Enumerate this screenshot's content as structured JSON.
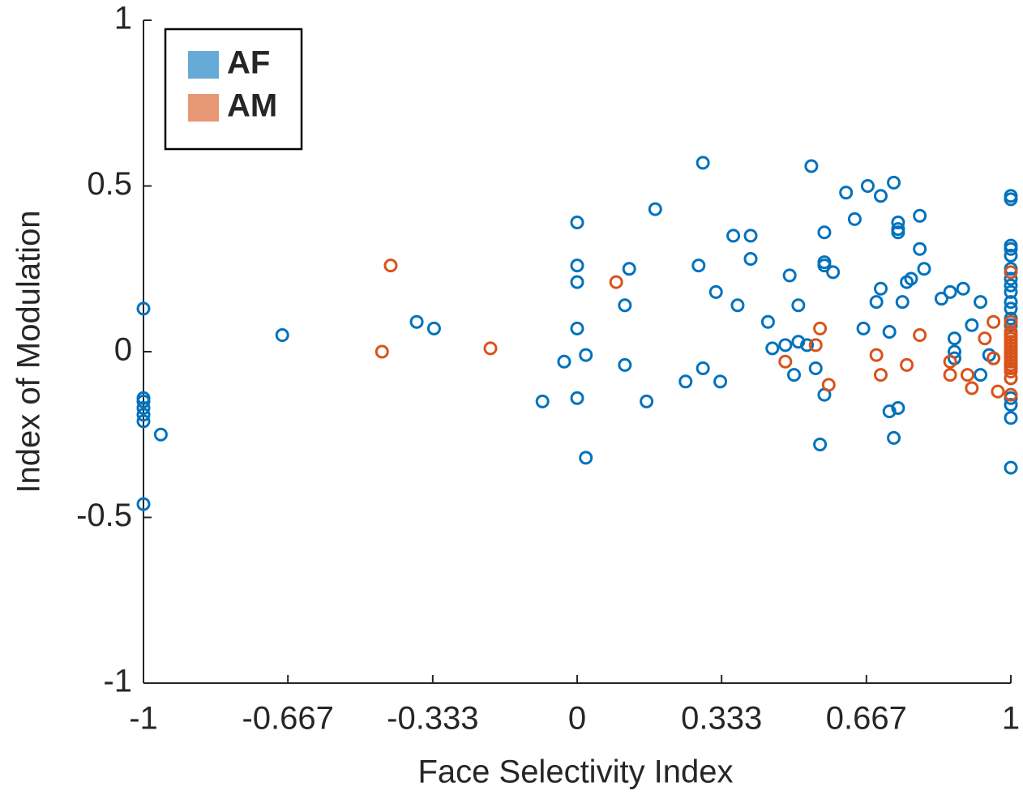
{
  "chart_data": {
    "type": "scatter",
    "xlabel": "Face Selectivity Index",
    "ylabel": "Index of Modulation",
    "xlim": [
      -1,
      1
    ],
    "ylim": [
      -1,
      1
    ],
    "xticks": [
      -1,
      -0.667,
      -0.333,
      0,
      0.333,
      0.667,
      1
    ],
    "yticks": [
      -1,
      -0.5,
      0,
      0.5,
      1
    ],
    "legend": "upper left",
    "series": [
      {
        "name": "AF",
        "color": "#0072BD",
        "x": [
          -1,
          -1,
          -1,
          -1,
          -1,
          -1,
          -0.96,
          -1,
          -0.68,
          -0.37,
          -0.33,
          -0.08,
          -0.03,
          0,
          0,
          0,
          0,
          0.02,
          0,
          0.02,
          0.12,
          0.11,
          0.11,
          0.18,
          0.16,
          0.25,
          0.29,
          0.28,
          0.29,
          0.33,
          0.32,
          0.36,
          0.4,
          0.4,
          0.37,
          0.44,
          0.45,
          0.48,
          0.49,
          0.51,
          0.51,
          0.5,
          0.54,
          0.53,
          0.55,
          0.56,
          0.57,
          0.57,
          0.57,
          0.57,
          0.59,
          0.62,
          0.64,
          0.66,
          0.67,
          0.7,
          0.69,
          0.7,
          0.72,
          0.73,
          0.74,
          0.74,
          0.74,
          0.75,
          0.76,
          0.77,
          0.79,
          0.79,
          0.8,
          0.74,
          0.72,
          0.73,
          0.84,
          0.86,
          0.89,
          0.87,
          0.87,
          0.87,
          0.91,
          0.93,
          0.93,
          0.95,
          0.96,
          1,
          1,
          1,
          1,
          1,
          1,
          1,
          1,
          1,
          1,
          1,
          1,
          1,
          1,
          1,
          1,
          1,
          1,
          1,
          1
        ],
        "values": [
          0.13,
          -0.14,
          -0.15,
          -0.17,
          -0.19,
          -0.21,
          -0.25,
          -0.46,
          0.05,
          0.09,
          0.07,
          -0.15,
          -0.03,
          0.39,
          0.26,
          0.21,
          0.07,
          -0.01,
          -0.14,
          -0.32,
          0.25,
          0.14,
          -0.04,
          0.43,
          -0.15,
          -0.09,
          0.57,
          0.26,
          -0.05,
          -0.09,
          0.18,
          0.35,
          0.35,
          0.28,
          0.14,
          0.09,
          0.01,
          0.02,
          0.23,
          0.14,
          0.03,
          -0.07,
          0.56,
          0.02,
          -0.05,
          -0.28,
          -0.13,
          0.36,
          0.27,
          0.26,
          0.24,
          0.48,
          0.4,
          0.07,
          0.5,
          0.47,
          0.15,
          0.19,
          0.06,
          0.51,
          0.39,
          0.37,
          0.36,
          0.15,
          0.21,
          0.22,
          0.41,
          0.31,
          0.25,
          -0.17,
          -0.18,
          -0.26,
          0.16,
          0.18,
          0.19,
          0.04,
          0,
          -0.02,
          0.08,
          0.15,
          -0.07,
          -0.01,
          -0.02,
          0.47,
          0.46,
          0.32,
          0.31,
          0.29,
          0.25,
          0.22,
          0.2,
          0.18,
          0.15,
          0.13,
          0.1,
          0.08,
          0.06,
          -0.04,
          -0.08,
          -0.14,
          -0.16,
          -0.2,
          -0.35
        ]
      },
      {
        "name": "AM",
        "color": "#D95319",
        "x": [
          -0.43,
          -0.45,
          -0.2,
          0.09,
          0.48,
          0.56,
          0.55,
          0.58,
          0.69,
          0.7,
          0.76,
          0.79,
          0.86,
          0.86,
          0.9,
          0.91,
          0.94,
          0.96,
          0.97,
          0.96,
          1,
          1,
          1,
          1,
          1,
          1,
          1,
          1,
          1,
          1,
          1,
          1,
          1,
          1,
          1,
          1,
          1
        ],
        "values": [
          0.26,
          0,
          0.01,
          0.21,
          -0.03,
          0.07,
          0.02,
          -0.1,
          -0.01,
          -0.07,
          -0.04,
          0.05,
          -0.03,
          -0.07,
          -0.07,
          -0.11,
          0.04,
          0.09,
          -0.12,
          -0.02,
          0.24,
          0.09,
          0.06,
          0.05,
          0.04,
          0.03,
          0.02,
          0.01,
          0,
          -0.01,
          -0.02,
          -0.03,
          -0.04,
          -0.05,
          -0.06,
          -0.08,
          -0.13
        ]
      }
    ]
  }
}
